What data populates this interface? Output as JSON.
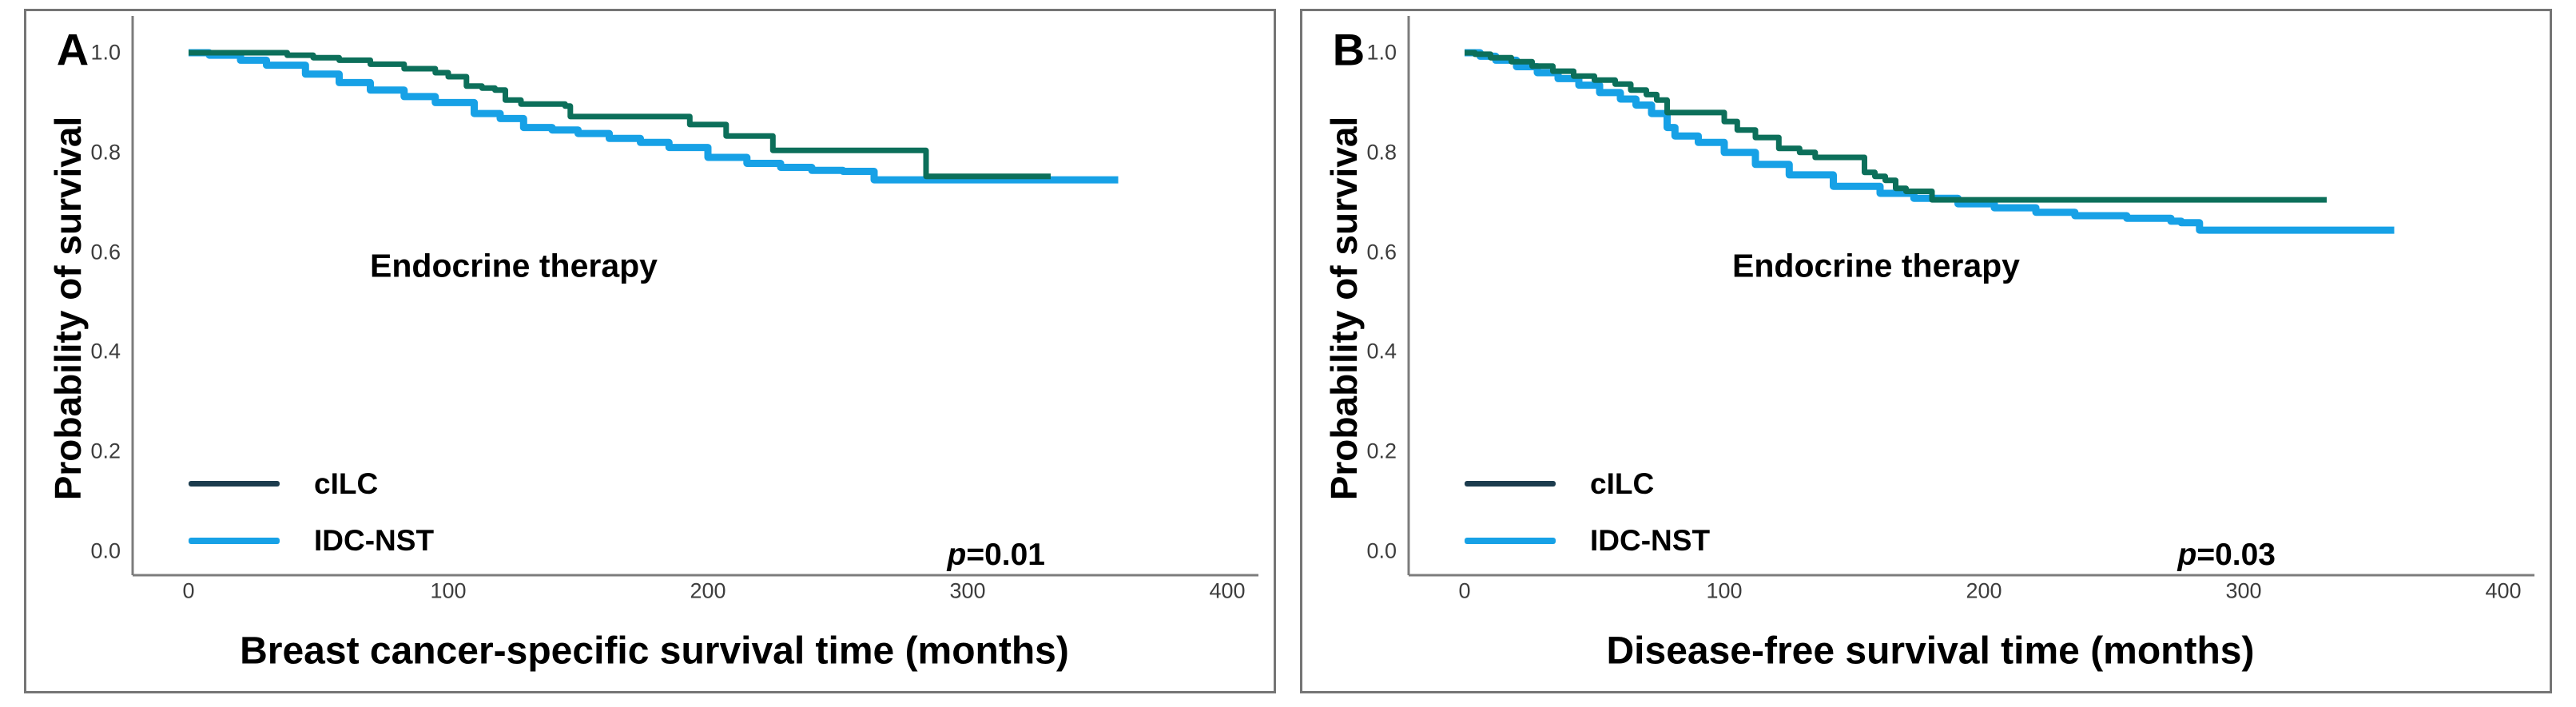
{
  "figure": {
    "background": "#ffffff",
    "border_color": "#757575"
  },
  "colors": {
    "cilc_curve": "#0c6f5a",
    "idc_nst_curve": "#17a1e6",
    "cilc_legend_swatch": "#1c3c4e",
    "idc_nst_legend_swatch": "#17a1e6",
    "axis_line": "#7c7c7c",
    "tick_label": "#3d3d3d",
    "text": "#000000"
  },
  "panels": [
    {
      "panel_label": "A",
      "y_axis_title": "Probability of survival",
      "x_axis_title": "Breast cancer-specific survival time (months)",
      "annotation": "Endocrine therapy",
      "p_prefix": "p",
      "p_text": "=0.01",
      "legend": [
        "cILC",
        "IDC-NST"
      ],
      "y_tick_labels": [
        "1.0",
        "0.8",
        "0.6",
        "0.4",
        "0.2",
        "0.0"
      ],
      "x_tick_labels": [
        "0",
        "100",
        "200",
        "300",
        "400"
      ]
    },
    {
      "panel_label": "B",
      "y_axis_title": "Probability of survival",
      "x_axis_title": "Disease-free survival time (months)",
      "annotation": "Endocrine therapy",
      "p_prefix": "p",
      "p_text": "=0.03",
      "legend": [
        "cILC",
        "IDC-NST"
      ],
      "y_tick_labels": [
        "1.0",
        "0.8",
        "0.6",
        "0.4",
        "0.2",
        "0.0"
      ],
      "x_tick_labels": [
        "0",
        "100",
        "200",
        "300",
        "400"
      ]
    }
  ],
  "chart_data": [
    {
      "type": "line",
      "subtype": "kaplan-meier-step",
      "panel": "A",
      "title": "Endocrine therapy",
      "xlabel": "Breast cancer-specific survival time (months)",
      "ylabel": "Probability of survival",
      "xlim": [
        0,
        412
      ],
      "ylim": [
        0,
        1.02
      ],
      "x_ticks": [
        0,
        100,
        200,
        300,
        400
      ],
      "y_ticks": [
        1.0,
        0.8,
        0.6,
        0.4,
        0.2,
        0.0
      ],
      "grid": false,
      "legend_position": "lower left",
      "p_value": "p=0.01",
      "series": [
        {
          "name": "cILC",
          "color": "#0c6f5a",
          "points": [
            [
              0,
              1.0
            ],
            [
              30,
              1.0
            ],
            [
              38,
              0.995
            ],
            [
              48,
              0.99
            ],
            [
              58,
              0.985
            ],
            [
              70,
              0.977
            ],
            [
              83,
              0.968
            ],
            [
              95,
              0.96
            ],
            [
              100,
              0.952
            ],
            [
              107,
              0.933
            ],
            [
              113,
              0.929
            ],
            [
              118,
              0.925
            ],
            [
              122,
              0.905
            ],
            [
              128,
              0.897
            ],
            [
              145,
              0.893
            ],
            [
              147,
              0.872
            ],
            [
              191,
              0.872
            ],
            [
              193,
              0.856
            ],
            [
              205,
              0.856
            ],
            [
              207,
              0.833
            ],
            [
              223,
              0.833
            ],
            [
              225,
              0.804
            ],
            [
              282,
              0.804
            ],
            [
              284,
              0.752
            ],
            [
              332,
              0.752
            ]
          ]
        },
        {
          "name": "IDC-NST",
          "color": "#17a1e6",
          "points": [
            [
              0,
              1.0
            ],
            [
              8,
              0.995
            ],
            [
              20,
              0.985
            ],
            [
              30,
              0.975
            ],
            [
              45,
              0.957
            ],
            [
              58,
              0.94
            ],
            [
              70,
              0.925
            ],
            [
              83,
              0.912
            ],
            [
              95,
              0.9
            ],
            [
              110,
              0.878
            ],
            [
              120,
              0.868
            ],
            [
              129,
              0.85
            ],
            [
              140,
              0.845
            ],
            [
              150,
              0.838
            ],
            [
              162,
              0.828
            ],
            [
              174,
              0.82
            ],
            [
              185,
              0.81
            ],
            [
              200,
              0.79
            ],
            [
              215,
              0.778
            ],
            [
              228,
              0.77
            ],
            [
              240,
              0.764
            ],
            [
              252,
              0.762
            ],
            [
              264,
              0.745
            ],
            [
              358,
              0.745
            ]
          ]
        }
      ]
    },
    {
      "type": "line",
      "subtype": "kaplan-meier-step",
      "panel": "B",
      "title": "Endocrine therapy",
      "xlabel": "Disease-free survival time (months)",
      "ylabel": "Probability of survival",
      "xlim": [
        0,
        412
      ],
      "ylim": [
        0,
        1.02
      ],
      "x_ticks": [
        0,
        100,
        200,
        300,
        400
      ],
      "y_ticks": [
        1.0,
        0.8,
        0.6,
        0.4,
        0.2,
        0.0
      ],
      "grid": false,
      "legend_position": "lower left",
      "p_value": "p=0.03",
      "series": [
        {
          "name": "cILC",
          "color": "#0c6f5a",
          "points": [
            [
              0,
              1.0
            ],
            [
              4,
              0.997
            ],
            [
              10,
              0.99
            ],
            [
              18,
              0.982
            ],
            [
              26,
              0.973
            ],
            [
              34,
              0.963
            ],
            [
              42,
              0.953
            ],
            [
              50,
              0.945
            ],
            [
              58,
              0.937
            ],
            [
              64,
              0.925
            ],
            [
              70,
              0.916
            ],
            [
              74,
              0.905
            ],
            [
              78,
              0.88
            ],
            [
              95,
              0.88
            ],
            [
              100,
              0.862
            ],
            [
              105,
              0.845
            ],
            [
              112,
              0.83
            ],
            [
              121,
              0.808
            ],
            [
              129,
              0.8
            ],
            [
              135,
              0.79
            ],
            [
              151,
              0.79
            ],
            [
              154,
              0.76
            ],
            [
              158,
              0.752
            ],
            [
              162,
              0.744
            ],
            [
              166,
              0.728
            ],
            [
              170,
              0.722
            ],
            [
              178,
              0.722
            ],
            [
              180,
              0.705
            ],
            [
              332,
              0.705
            ]
          ]
        },
        {
          "name": "IDC-NST",
          "color": "#17a1e6",
          "points": [
            [
              0,
              1.0
            ],
            [
              6,
              0.993
            ],
            [
              12,
              0.985
            ],
            [
              20,
              0.972
            ],
            [
              28,
              0.96
            ],
            [
              36,
              0.948
            ],
            [
              44,
              0.935
            ],
            [
              52,
              0.92
            ],
            [
              60,
              0.907
            ],
            [
              66,
              0.895
            ],
            [
              72,
              0.878
            ],
            [
              78,
              0.85
            ],
            [
              81,
              0.833
            ],
            [
              90,
              0.82
            ],
            [
              100,
              0.8
            ],
            [
              112,
              0.776
            ],
            [
              125,
              0.755
            ],
            [
              142,
              0.732
            ],
            [
              160,
              0.718
            ],
            [
              173,
              0.708
            ],
            [
              190,
              0.697
            ],
            [
              204,
              0.689
            ],
            [
              220,
              0.68
            ],
            [
              235,
              0.673
            ],
            [
              255,
              0.668
            ],
            [
              272,
              0.662
            ],
            [
              276,
              0.659
            ],
            [
              283,
              0.644
            ],
            [
              358,
              0.644
            ]
          ]
        }
      ]
    }
  ]
}
